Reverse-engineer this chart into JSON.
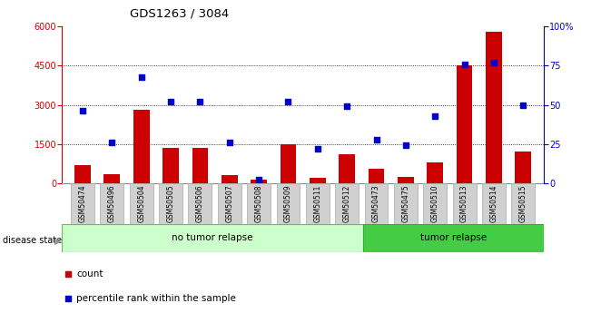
{
  "title": "GDS1263 / 3084",
  "samples": [
    "GSM50474",
    "GSM50496",
    "GSM50504",
    "GSM50505",
    "GSM50506",
    "GSM50507",
    "GSM50508",
    "GSM50509",
    "GSM50511",
    "GSM50512",
    "GSM50473",
    "GSM50475",
    "GSM50510",
    "GSM50513",
    "GSM50514",
    "GSM50515"
  ],
  "counts": [
    700,
    350,
    2800,
    1350,
    1350,
    300,
    120,
    1500,
    200,
    1100,
    550,
    250,
    800,
    4500,
    5800,
    1200
  ],
  "percentiles": [
    46,
    26,
    68,
    52,
    52,
    26,
    2,
    52,
    22,
    49,
    28,
    24,
    43,
    76,
    77,
    50
  ],
  "no_tumor_count": 10,
  "tumor_count": 6,
  "ylim_left": [
    0,
    6000
  ],
  "ylim_right": [
    0,
    100
  ],
  "left_ticks": [
    0,
    1500,
    3000,
    4500,
    6000
  ],
  "right_ticks": [
    0,
    25,
    50,
    75,
    100
  ],
  "right_tick_labels": [
    "0",
    "25",
    "50",
    "75",
    "100%"
  ],
  "bar_color": "#cc0000",
  "dot_color": "#0000cc",
  "no_tumor_color": "#ccffcc",
  "tumor_color": "#44cc44",
  "disease_label_no": "no tumor relapse",
  "disease_label_yes": "tumor relapse",
  "disease_state_label": "disease state",
  "legend_count": "count",
  "legend_pct": "percentile rank within the sample",
  "grid_ticks": [
    1500,
    3000,
    4500
  ],
  "xticklabel_bg": "#d0d0d0",
  "xticklabel_edge": "#aaaaaa"
}
